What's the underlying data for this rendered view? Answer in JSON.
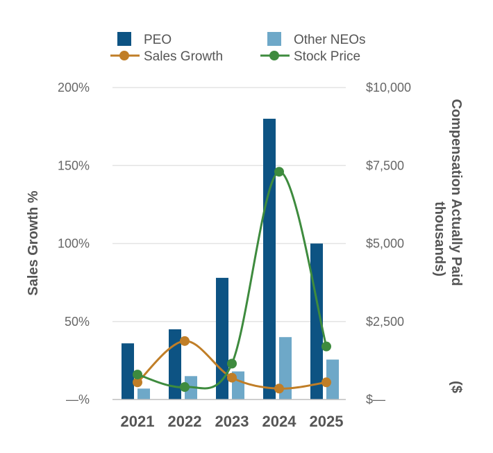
{
  "chart_data": {
    "type": "bar",
    "categories": [
      "2021",
      "2022",
      "2023",
      "2024",
      "2025"
    ],
    "series": [
      {
        "name": "PEO",
        "kind": "bar",
        "axis": "right",
        "color": "#0d5383",
        "values": [
          1800,
          2250,
          3900,
          9000,
          5000
        ]
      },
      {
        "name": "Other NEOs",
        "kind": "bar",
        "axis": "right",
        "color": "#6ea8c8",
        "values": [
          350,
          750,
          900,
          2000,
          1280
        ]
      },
      {
        "name": "Sales Growth",
        "kind": "line",
        "axis": "left",
        "color": "#c07e27",
        "values": [
          11,
          37.5,
          14,
          7,
          11
        ]
      },
      {
        "name": "Stock Price",
        "kind": "line",
        "axis": "right",
        "color": "#3e8b3e",
        "values": [
          800,
          400,
          1150,
          7300,
          1700
        ]
      }
    ],
    "y_left": {
      "label": "Sales Growth %",
      "ylim": [
        0,
        200
      ],
      "ticks": [
        {
          "value": 0,
          "label": "—%"
        },
        {
          "value": 50,
          "label": "50%"
        },
        {
          "value": 100,
          "label": "100%"
        },
        {
          "value": 150,
          "label": "150%"
        },
        {
          "value": 200,
          "label": "200%"
        }
      ]
    },
    "y_right": {
      "label_line1": "Compensation Actually Paid",
      "label_line2": "thousands)",
      "label_prefix": "($",
      "ylim": [
        0,
        10000
      ],
      "ticks": [
        {
          "value": 0,
          "label": "$—"
        },
        {
          "value": 2500,
          "label": "$2,500"
        },
        {
          "value": 5000,
          "label": "$5,000"
        },
        {
          "value": 7500,
          "label": "$7,500"
        },
        {
          "value": 10000,
          "label": "$10,000"
        }
      ]
    },
    "grid": true,
    "legend": "top"
  }
}
